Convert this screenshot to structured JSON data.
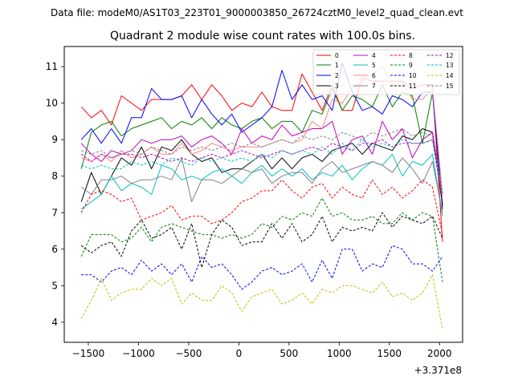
{
  "figure": {
    "suptitle": "Data file: modeM0/AS1T03_223T01_9000003850_26724cztM0_level2_quad_clean.evt"
  },
  "chart_data": {
    "type": "line",
    "title": "Quadrant 2 module wise count rates with 100.0s bins.",
    "xlabel": "",
    "ylabel": "",
    "offset_text": "+3.371e8",
    "xlim": [
      -1740,
      2230
    ],
    "ylim": [
      3.45,
      11.55
    ],
    "xticks": [
      -1500,
      -1000,
      -500,
      0,
      500,
      1000,
      1500,
      2000
    ],
    "xtick_labels": [
      "−1500",
      "−1000",
      "−500",
      "0",
      "500",
      "1000",
      "1500",
      "2000"
    ],
    "yticks": [
      4,
      5,
      6,
      7,
      8,
      9,
      10,
      11
    ],
    "ytick_labels": [
      "4",
      "5",
      "6",
      "7",
      "8",
      "9",
      "10",
      "11"
    ],
    "legend_position": "top-right",
    "legend_columns": 4,
    "x": [
      -1570,
      -1470,
      -1370,
      -1270,
      -1170,
      -1070,
      -970,
      -870,
      -770,
      -670,
      -570,
      -470,
      -370,
      -270,
      -170,
      -70,
      30,
      130,
      230,
      330,
      430,
      530,
      630,
      730,
      830,
      930,
      1030,
      1130,
      1230,
      1330,
      1430,
      1530,
      1630,
      1730,
      1830,
      1930,
      2030
    ],
    "series": [
      {
        "name": "0",
        "color": "#ff0000",
        "dash": false,
        "values": [
          9.9,
          9.6,
          9.8,
          9.4,
          10.2,
          10.0,
          9.8,
          10.1,
          10.1,
          10.1,
          10.2,
          10.5,
          10.1,
          10.5,
          10.2,
          9.8,
          10.0,
          9.9,
          10.3,
          9.9,
          9.8,
          9.8,
          10.8,
          10.3,
          9.8,
          10.5,
          9.8,
          9.8,
          10.7,
          10.6,
          10.6,
          10.6,
          10.6,
          10.4,
          10.5,
          10.5,
          6.2
        ]
      },
      {
        "name": "1",
        "color": "#008000",
        "dash": false,
        "values": [
          8.2,
          9.2,
          9.4,
          9.5,
          9.1,
          9.3,
          9.4,
          9.5,
          9.6,
          9.3,
          9.5,
          9.4,
          9.6,
          9.3,
          9.6,
          9.4,
          9.3,
          9.5,
          9.6,
          9.3,
          9.5,
          9.5,
          9.2,
          9.8,
          9.7,
          10.4,
          9.8,
          10.2,
          10.1,
          9.9,
          10.5,
          9.9,
          10.3,
          10.2,
          8.9,
          10.3,
          7.2
        ]
      },
      {
        "name": "2",
        "color": "#0000ff",
        "dash": false,
        "values": [
          9.0,
          9.3,
          8.9,
          9.3,
          8.9,
          9.6,
          9.6,
          10.4,
          10.1,
          10.1,
          10.2,
          9.6,
          10.1,
          9.7,
          9.4,
          9.7,
          9.2,
          9.4,
          9.6,
          9.9,
          10.9,
          10.1,
          10.5,
          10.1,
          10.2,
          9.8,
          11.1,
          10.3,
          9.8,
          9.9,
          9.7,
          10.2,
          10.1,
          9.9,
          10.3,
          10.3,
          7.1
        ]
      },
      {
        "name": "3",
        "color": "#000000",
        "dash": false,
        "values": [
          7.3,
          8.1,
          7.5,
          8.0,
          8.5,
          8.3,
          8.8,
          8.2,
          8.8,
          8.7,
          9.0,
          8.6,
          8.4,
          8.5,
          8.1,
          8.2,
          8.2,
          8.4,
          8.6,
          8.2,
          8.5,
          8.2,
          8.5,
          8.6,
          8.4,
          8.7,
          8.8,
          8.9,
          8.6,
          8.9,
          8.8,
          8.7,
          9.1,
          9.0,
          9.3,
          9.2,
          7.2
        ]
      },
      {
        "name": "4",
        "color": "#bf00bf",
        "dash": false,
        "values": [
          8.9,
          8.6,
          8.4,
          8.7,
          8.6,
          8.7,
          9.0,
          8.9,
          9.0,
          9.0,
          9.1,
          8.8,
          9.0,
          9.1,
          8.9,
          8.6,
          9.3,
          8.9,
          9.1,
          9.0,
          9.4,
          9.1,
          9.2,
          9.3,
          9.3,
          9.5,
          8.6,
          9.0,
          9.1,
          8.6,
          9.5,
          9.0,
          9.3,
          8.5,
          9.0,
          9.2,
          7.5
        ]
      },
      {
        "name": "5",
        "color": "#00bfbf",
        "dash": false,
        "values": [
          7.1,
          7.3,
          7.5,
          8.0,
          7.6,
          7.8,
          7.7,
          7.5,
          8.3,
          8.2,
          7.9,
          8.0,
          7.9,
          8.1,
          8.2,
          8.0,
          7.8,
          8.1,
          8.3,
          8.0,
          8.2,
          8.0,
          8.2,
          7.9,
          8.1,
          8.0,
          8.3,
          7.9,
          8.2,
          8.4,
          8.3,
          8.6,
          8.0,
          8.4,
          8.3,
          8.6,
          6.9
        ]
      },
      {
        "name": "6",
        "color": "#ff8080",
        "dash": false,
        "values": [
          8.5,
          8.4,
          8.6,
          8.4,
          8.7,
          8.5,
          8.6,
          8.8,
          8.6,
          8.6,
          8.9,
          8.6,
          8.7,
          8.9,
          8.8,
          8.7,
          8.8,
          8.8,
          8.8,
          8.9,
          9.0,
          8.9,
          9.0,
          9.5,
          9.3,
          10.1,
          10.0,
          10.4,
          10.6,
          10.8,
          11.0,
          10.5,
          10.6,
          10.1,
          10.1,
          10.4,
          7.5
        ]
      },
      {
        "name": "7",
        "color": "#808080",
        "dash": false,
        "values": [
          7.7,
          7.5,
          7.9,
          7.9,
          8.0,
          7.8,
          7.9,
          7.9,
          8.0,
          7.9,
          8.5,
          7.3,
          7.9,
          7.9,
          7.8,
          8.0,
          8.2,
          8.1,
          8.2,
          7.8,
          8.0,
          8.1,
          8.1,
          7.8,
          8.2,
          8.4,
          8.1,
          8.2,
          8.3,
          8.4,
          8.3,
          8.1,
          8.5,
          8.2,
          7.8,
          8.4,
          7.0
        ]
      },
      {
        "name": "8",
        "color": "#ff0000",
        "dash": true,
        "values": [
          7.0,
          7.5,
          7.6,
          7.5,
          7.3,
          7.4,
          6.8,
          6.9,
          7.0,
          7.2,
          6.8,
          6.9,
          6.9,
          6.7,
          6.8,
          7.0,
          7.3,
          7.4,
          7.6,
          7.6,
          7.9,
          7.6,
          7.4,
          7.7,
          7.8,
          7.4,
          7.7,
          7.5,
          7.4,
          7.9,
          7.5,
          7.7,
          7.4,
          7.6,
          7.9,
          7.7,
          6.4
        ]
      },
      {
        "name": "9",
        "color": "#008000",
        "dash": true,
        "values": [
          5.8,
          6.4,
          6.4,
          6.4,
          6.2,
          6.3,
          6.6,
          6.2,
          6.6,
          6.7,
          6.6,
          6.5,
          6.4,
          6.4,
          6.3,
          6.4,
          6.3,
          6.4,
          6.7,
          6.6,
          6.9,
          6.8,
          7.0,
          6.9,
          7.4,
          6.9,
          7.0,
          6.8,
          6.8,
          6.9,
          6.7,
          6.7,
          7.0,
          6.8,
          7.0,
          6.9,
          5.1
        ]
      },
      {
        "name": "10",
        "color": "#0000ff",
        "dash": true,
        "values": [
          5.3,
          5.3,
          5.1,
          5.4,
          5.5,
          5.3,
          5.7,
          5.4,
          5.6,
          5.3,
          5.6,
          5.1,
          5.8,
          5.5,
          5.6,
          5.3,
          4.9,
          5.1,
          5.4,
          5.5,
          5.3,
          5.4,
          5.6,
          5.1,
          5.7,
          5.2,
          6.0,
          6.0,
          5.4,
          5.6,
          5.5,
          6.1,
          6.0,
          5.6,
          5.6,
          5.4,
          5.8
        ]
      },
      {
        "name": "11",
        "color": "#000000",
        "dash": true,
        "values": [
          6.1,
          5.9,
          6.1,
          6.2,
          5.8,
          6.5,
          6.8,
          6.3,
          6.4,
          6.6,
          6.0,
          6.7,
          5.5,
          6.4,
          6.8,
          6.6,
          6.1,
          6.2,
          6.2,
          6.7,
          6.3,
          6.7,
          6.2,
          6.4,
          6.9,
          6.2,
          6.6,
          6.5,
          6.6,
          6.5,
          7.0,
          6.6,
          6.9,
          6.8,
          6.7,
          6.9,
          6.3
        ]
      },
      {
        "name": "12",
        "color": "#bf00bf",
        "dash": true,
        "values": [
          8.6,
          8.4,
          8.6,
          8.5,
          8.6,
          8.6,
          8.5,
          8.6,
          8.5,
          8.4,
          8.5,
          8.4,
          8.5,
          8.6,
          8.5,
          8.6,
          8.7,
          8.6,
          8.5,
          8.6,
          8.7,
          8.6,
          8.7,
          8.8,
          8.7,
          8.9,
          8.8,
          8.7,
          8.9,
          8.9,
          9.0,
          8.8,
          8.9,
          8.9,
          8.9,
          9.0,
          7.3
        ]
      },
      {
        "name": "13",
        "color": "#00bfbf",
        "dash": true,
        "values": [
          8.3,
          8.2,
          8.3,
          8.2,
          8.2,
          8.4,
          8.3,
          8.4,
          8.3,
          8.5,
          8.4,
          8.3,
          8.5,
          8.4,
          8.5,
          8.4,
          8.5,
          8.4,
          8.6,
          8.5,
          8.7,
          8.6,
          8.7,
          8.6,
          8.8,
          8.6,
          8.9,
          8.7,
          9.0,
          8.8,
          8.9,
          8.8,
          9.0,
          8.9,
          8.9,
          9.0,
          7.4
        ]
      },
      {
        "name": "14",
        "color": "#bfbf00",
        "dash": true,
        "values": [
          4.1,
          4.6,
          5.2,
          4.6,
          4.8,
          4.9,
          4.9,
          5.2,
          5.0,
          5.2,
          4.5,
          4.8,
          4.6,
          4.6,
          5.0,
          4.8,
          4.3,
          4.7,
          4.8,
          4.9,
          4.5,
          4.6,
          4.8,
          4.5,
          4.9,
          4.8,
          5.0,
          5.0,
          4.9,
          4.8,
          5.1,
          4.7,
          4.8,
          4.6,
          4.8,
          5.3,
          3.8
        ]
      },
      {
        "name": "15",
        "color": "#808080",
        "dash": true,
        "values": [
          8.7,
          8.6,
          8.7,
          8.5,
          8.6,
          8.7,
          8.6,
          8.8,
          8.7,
          8.6,
          8.8,
          8.7,
          8.8,
          8.7,
          8.8,
          8.9,
          8.8,
          8.9,
          8.8,
          8.9,
          9.0,
          8.9,
          9.1,
          9.0,
          9.1,
          9.0,
          9.2,
          9.1,
          9.0,
          9.2,
          9.1,
          9.2,
          9.3,
          9.1,
          9.2,
          9.1,
          7.5
        ]
      }
    ]
  }
}
